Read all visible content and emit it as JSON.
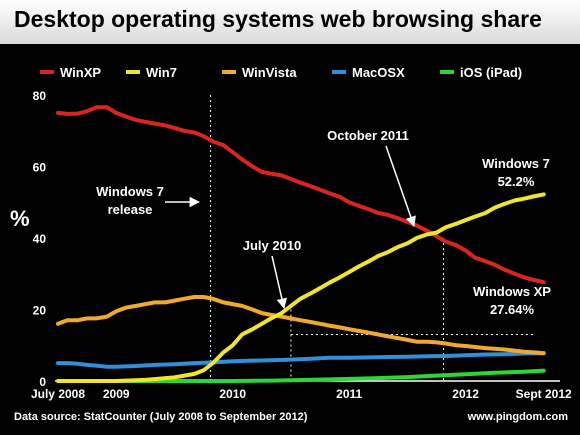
{
  "chart_data": {
    "type": "line",
    "title": "Desktop operating systems web browsing share",
    "ylabel": "%",
    "ylim": [
      0,
      80
    ],
    "yticks": [
      "0",
      "20",
      "40",
      "60",
      "80"
    ],
    "xlim": [
      2008.5,
      2012.75
    ],
    "xticks": [
      {
        "x": 2008.5,
        "label": "July 2008"
      },
      {
        "x": 2009.0,
        "label": "2009"
      },
      {
        "x": 2010.0,
        "label": "2010"
      },
      {
        "x": 2011.0,
        "label": "2011"
      },
      {
        "x": 2012.0,
        "label": "2012"
      },
      {
        "x": 2012.67,
        "label": "Sept 2012"
      }
    ],
    "grid": false,
    "legend_position": "top",
    "series": [
      {
        "name": "WinXP",
        "color": "#d9261c",
        "points": [
          [
            2008.5,
            75
          ],
          [
            2008.58,
            74.7
          ],
          [
            2008.67,
            74.8
          ],
          [
            2008.75,
            75.5
          ],
          [
            2008.83,
            76.6
          ],
          [
            2008.92,
            76.6
          ],
          [
            2009.0,
            75
          ],
          [
            2009.08,
            74
          ],
          [
            2009.17,
            73
          ],
          [
            2009.25,
            72.5
          ],
          [
            2009.33,
            72
          ],
          [
            2009.42,
            71.5
          ],
          [
            2009.5,
            70.8
          ],
          [
            2009.58,
            70
          ],
          [
            2009.67,
            69.5
          ],
          [
            2009.75,
            68.5
          ],
          [
            2009.83,
            67
          ],
          [
            2009.92,
            66
          ],
          [
            2010.0,
            64
          ],
          [
            2010.08,
            62
          ],
          [
            2010.17,
            60
          ],
          [
            2010.25,
            58.5
          ],
          [
            2010.33,
            58
          ],
          [
            2010.42,
            57.5
          ],
          [
            2010.5,
            56.5
          ],
          [
            2010.58,
            55.5
          ],
          [
            2010.67,
            54.5
          ],
          [
            2010.75,
            53.5
          ],
          [
            2010.83,
            52.5
          ],
          [
            2010.92,
            51.5
          ],
          [
            2011.0,
            50
          ],
          [
            2011.08,
            49
          ],
          [
            2011.17,
            48
          ],
          [
            2011.25,
            47
          ],
          [
            2011.33,
            46.5
          ],
          [
            2011.42,
            45.5
          ],
          [
            2011.5,
            44.5
          ],
          [
            2011.58,
            43.5
          ],
          [
            2011.67,
            42
          ],
          [
            2011.75,
            40.5
          ],
          [
            2011.83,
            39
          ],
          [
            2011.92,
            38
          ],
          [
            2012.0,
            36.5
          ],
          [
            2012.08,
            34.5
          ],
          [
            2012.17,
            33.5
          ],
          [
            2012.25,
            32.5
          ],
          [
            2012.33,
            31.2
          ],
          [
            2012.42,
            30
          ],
          [
            2012.5,
            29
          ],
          [
            2012.58,
            28.3
          ],
          [
            2012.67,
            27.64
          ]
        ]
      },
      {
        "name": "Win7",
        "color": "#f0e52a",
        "points": [
          [
            2008.5,
            0
          ],
          [
            2008.75,
            0
          ],
          [
            2009.0,
            0
          ],
          [
            2009.25,
            0.3
          ],
          [
            2009.5,
            1
          ],
          [
            2009.67,
            2
          ],
          [
            2009.75,
            3
          ],
          [
            2009.83,
            5
          ],
          [
            2009.92,
            8
          ],
          [
            2010.0,
            10
          ],
          [
            2010.08,
            13
          ],
          [
            2010.17,
            14.5
          ],
          [
            2010.25,
            16
          ],
          [
            2010.33,
            17.5
          ],
          [
            2010.42,
            19
          ],
          [
            2010.5,
            21
          ],
          [
            2010.58,
            23
          ],
          [
            2010.67,
            24.5
          ],
          [
            2010.75,
            26
          ],
          [
            2010.83,
            27.5
          ],
          [
            2010.92,
            29
          ],
          [
            2011.0,
            30.5
          ],
          [
            2011.08,
            32
          ],
          [
            2011.17,
            33.5
          ],
          [
            2011.25,
            35
          ],
          [
            2011.33,
            36
          ],
          [
            2011.42,
            37.5
          ],
          [
            2011.5,
            38.5
          ],
          [
            2011.58,
            40
          ],
          [
            2011.67,
            41
          ],
          [
            2011.75,
            41.5
          ],
          [
            2011.83,
            43
          ],
          [
            2011.92,
            44
          ],
          [
            2012.0,
            45
          ],
          [
            2012.08,
            46
          ],
          [
            2012.17,
            47
          ],
          [
            2012.25,
            48.5
          ],
          [
            2012.33,
            49.5
          ],
          [
            2012.42,
            50.5
          ],
          [
            2012.5,
            51
          ],
          [
            2012.58,
            51.6
          ],
          [
            2012.67,
            52.2
          ]
        ]
      },
      {
        "name": "WinVista",
        "color": "#f0a92a",
        "points": [
          [
            2008.5,
            16
          ],
          [
            2008.58,
            17
          ],
          [
            2008.67,
            17
          ],
          [
            2008.75,
            17.5
          ],
          [
            2008.83,
            17.5
          ],
          [
            2008.92,
            18
          ],
          [
            2009.0,
            19.5
          ],
          [
            2009.08,
            20.5
          ],
          [
            2009.17,
            21
          ],
          [
            2009.25,
            21.5
          ],
          [
            2009.33,
            22
          ],
          [
            2009.42,
            22
          ],
          [
            2009.5,
            22.5
          ],
          [
            2009.58,
            23
          ],
          [
            2009.67,
            23.5
          ],
          [
            2009.75,
            23.5
          ],
          [
            2009.83,
            23
          ],
          [
            2009.92,
            22
          ],
          [
            2010.0,
            21.5
          ],
          [
            2010.08,
            21
          ],
          [
            2010.17,
            20
          ],
          [
            2010.25,
            19
          ],
          [
            2010.33,
            18.5
          ],
          [
            2010.42,
            18
          ],
          [
            2010.5,
            17.5
          ],
          [
            2010.58,
            17
          ],
          [
            2010.67,
            16.5
          ],
          [
            2010.75,
            16
          ],
          [
            2010.83,
            15.5
          ],
          [
            2010.92,
            15
          ],
          [
            2011.0,
            14.5
          ],
          [
            2011.08,
            14
          ],
          [
            2011.17,
            13.5
          ],
          [
            2011.25,
            13
          ],
          [
            2011.33,
            12.5
          ],
          [
            2011.42,
            12
          ],
          [
            2011.5,
            11.5
          ],
          [
            2011.58,
            11
          ],
          [
            2011.67,
            11
          ],
          [
            2011.75,
            10.8
          ],
          [
            2011.83,
            10.5
          ],
          [
            2011.92,
            10
          ],
          [
            2012.0,
            9.8
          ],
          [
            2012.08,
            9.5
          ],
          [
            2012.17,
            9.2
          ],
          [
            2012.25,
            9
          ],
          [
            2012.33,
            8.8
          ],
          [
            2012.42,
            8.5
          ],
          [
            2012.5,
            8.2
          ],
          [
            2012.58,
            8
          ],
          [
            2012.67,
            7.8
          ]
        ]
      },
      {
        "name": "MacOSX",
        "color": "#2f8fd8",
        "points": [
          [
            2008.5,
            5
          ],
          [
            2008.58,
            5
          ],
          [
            2008.67,
            4.8
          ],
          [
            2008.75,
            4.5
          ],
          [
            2008.83,
            4.3
          ],
          [
            2008.92,
            4
          ],
          [
            2009.0,
            4
          ],
          [
            2009.17,
            4.2
          ],
          [
            2009.33,
            4.5
          ],
          [
            2009.5,
            4.7
          ],
          [
            2009.67,
            5
          ],
          [
            2009.83,
            5.2
          ],
          [
            2010.0,
            5.5
          ],
          [
            2010.17,
            5.7
          ],
          [
            2010.33,
            5.8
          ],
          [
            2010.5,
            6
          ],
          [
            2010.67,
            6.2
          ],
          [
            2010.83,
            6.5
          ],
          [
            2011.0,
            6.5
          ],
          [
            2011.17,
            6.6
          ],
          [
            2011.33,
            6.7
          ],
          [
            2011.5,
            6.8
          ],
          [
            2011.67,
            6.9
          ],
          [
            2011.83,
            7
          ],
          [
            2012.0,
            7.2
          ],
          [
            2012.17,
            7.4
          ],
          [
            2012.33,
            7.5
          ],
          [
            2012.5,
            7.7
          ],
          [
            2012.67,
            7.8
          ]
        ]
      },
      {
        "name": "iOS (iPad)",
        "color": "#2fd43a",
        "points": [
          [
            2008.5,
            0
          ],
          [
            2009.0,
            0
          ],
          [
            2009.5,
            0
          ],
          [
            2010.0,
            0
          ],
          [
            2010.33,
            0.1
          ],
          [
            2010.5,
            0.2
          ],
          [
            2010.75,
            0.4
          ],
          [
            2011.0,
            0.6
          ],
          [
            2011.25,
            0.8
          ],
          [
            2011.5,
            1.1
          ],
          [
            2011.75,
            1.5
          ],
          [
            2012.0,
            1.9
          ],
          [
            2012.25,
            2.3
          ],
          [
            2012.5,
            2.6
          ],
          [
            2012.67,
            2.9
          ]
        ]
      }
    ],
    "markers": [
      {
        "x": 2009.81,
        "y_top": 80
      },
      {
        "x": 2010.5,
        "y_top": 20
      },
      {
        "x": 2011.81,
        "y_top": 40
      }
    ],
    "hline": {
      "y": 13,
      "x_from": 2010.5,
      "x_to": 2012.58
    },
    "annotations": {
      "win7_release": [
        "Windows 7",
        "release"
      ],
      "july2010": "July 2010",
      "oct2011": "October 2011",
      "win7_end": [
        "Windows 7",
        "52.2%"
      ],
      "winxp_end": [
        "Windows XP",
        "27.64%"
      ]
    }
  },
  "footer": {
    "source": "Data source: StatCounter (July 2008 to September 2012)",
    "site": "www.pingdom.com"
  }
}
